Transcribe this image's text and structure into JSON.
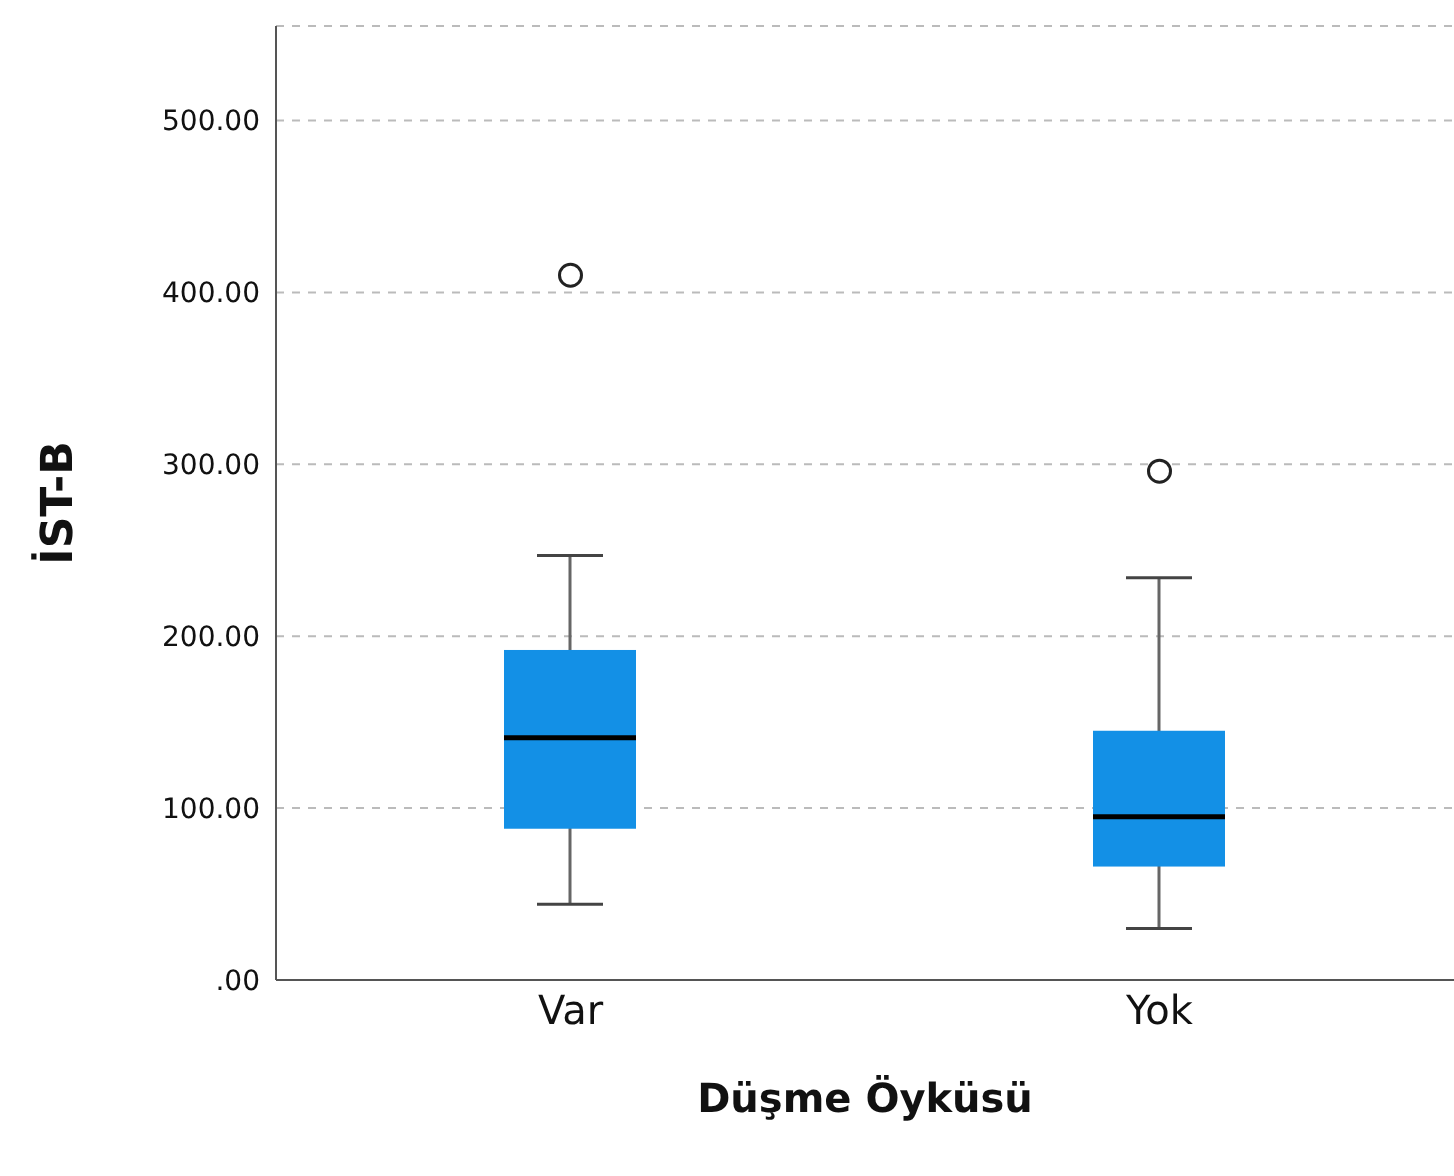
{
  "chart_data": {
    "type": "box",
    "xlabel": "Düşme Öyküsü",
    "ylabel": "İST-B",
    "categories": [
      "Var",
      "Yok"
    ],
    "color": "#1390e6",
    "boxes": [
      {
        "low": 44,
        "q1": 88,
        "median": 141,
        "q3": 192,
        "high": 247,
        "outliers": [
          410
        ]
      },
      {
        "low": 30,
        "q1": 66,
        "median": 95,
        "q3": 145,
        "high": 234,
        "outliers": [
          296
        ]
      }
    ],
    "ylim": [
      0,
      555
    ],
    "yticks": [
      {
        "value": 0,
        "label": ".00"
      },
      {
        "value": 100,
        "label": "100.00"
      },
      {
        "value": 200,
        "label": "200.00"
      },
      {
        "value": 300,
        "label": "300.00"
      },
      {
        "value": 400,
        "label": "400.00"
      },
      {
        "value": 500,
        "label": "500.00"
      }
    ],
    "grid": "y"
  }
}
